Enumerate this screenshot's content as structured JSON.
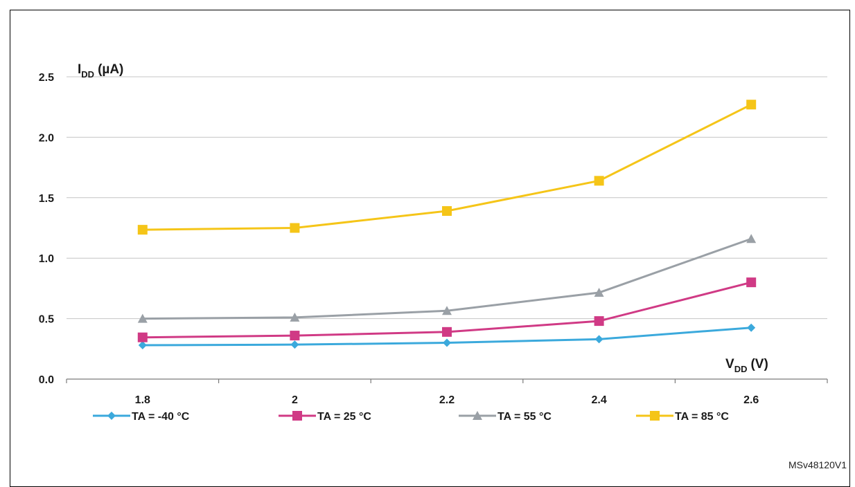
{
  "chart_data": {
    "type": "line",
    "title": "",
    "ylabel": {
      "main": "I",
      "sub": "DD",
      "unit": "(µA)"
    },
    "xlabel": {
      "main": "V",
      "sub": "DD",
      "unit": "(V)"
    },
    "ylim": [
      0,
      2.5
    ],
    "yticks": [
      "0.0",
      "0.5",
      "1.0",
      "1.5",
      "2.0",
      "2.5"
    ],
    "categories": [
      "1.8",
      "2",
      "2.2",
      "2.4",
      "2.6"
    ],
    "grid": "horizontal",
    "legend_position": "bottom",
    "series": [
      {
        "name": "TA = -40 °C",
        "color": "#3ba9dc",
        "marker": "diamond",
        "values": [
          0.28,
          0.285,
          0.3,
          0.33,
          0.425
        ]
      },
      {
        "name": "TA = 25 °C",
        "color": "#d03a85",
        "marker": "square",
        "values": [
          0.345,
          0.36,
          0.39,
          0.48,
          0.8
        ]
      },
      {
        "name": "TA = 55 °C",
        "color": "#9aa0a6",
        "marker": "triangle",
        "values": [
          0.5,
          0.51,
          0.565,
          0.715,
          1.16
        ]
      },
      {
        "name": "TA = 85 °C",
        "color": "#f5c518",
        "marker": "square",
        "values": [
          1.235,
          1.25,
          1.39,
          1.64,
          2.27
        ]
      }
    ]
  },
  "figure_code": "MSv48120V1"
}
